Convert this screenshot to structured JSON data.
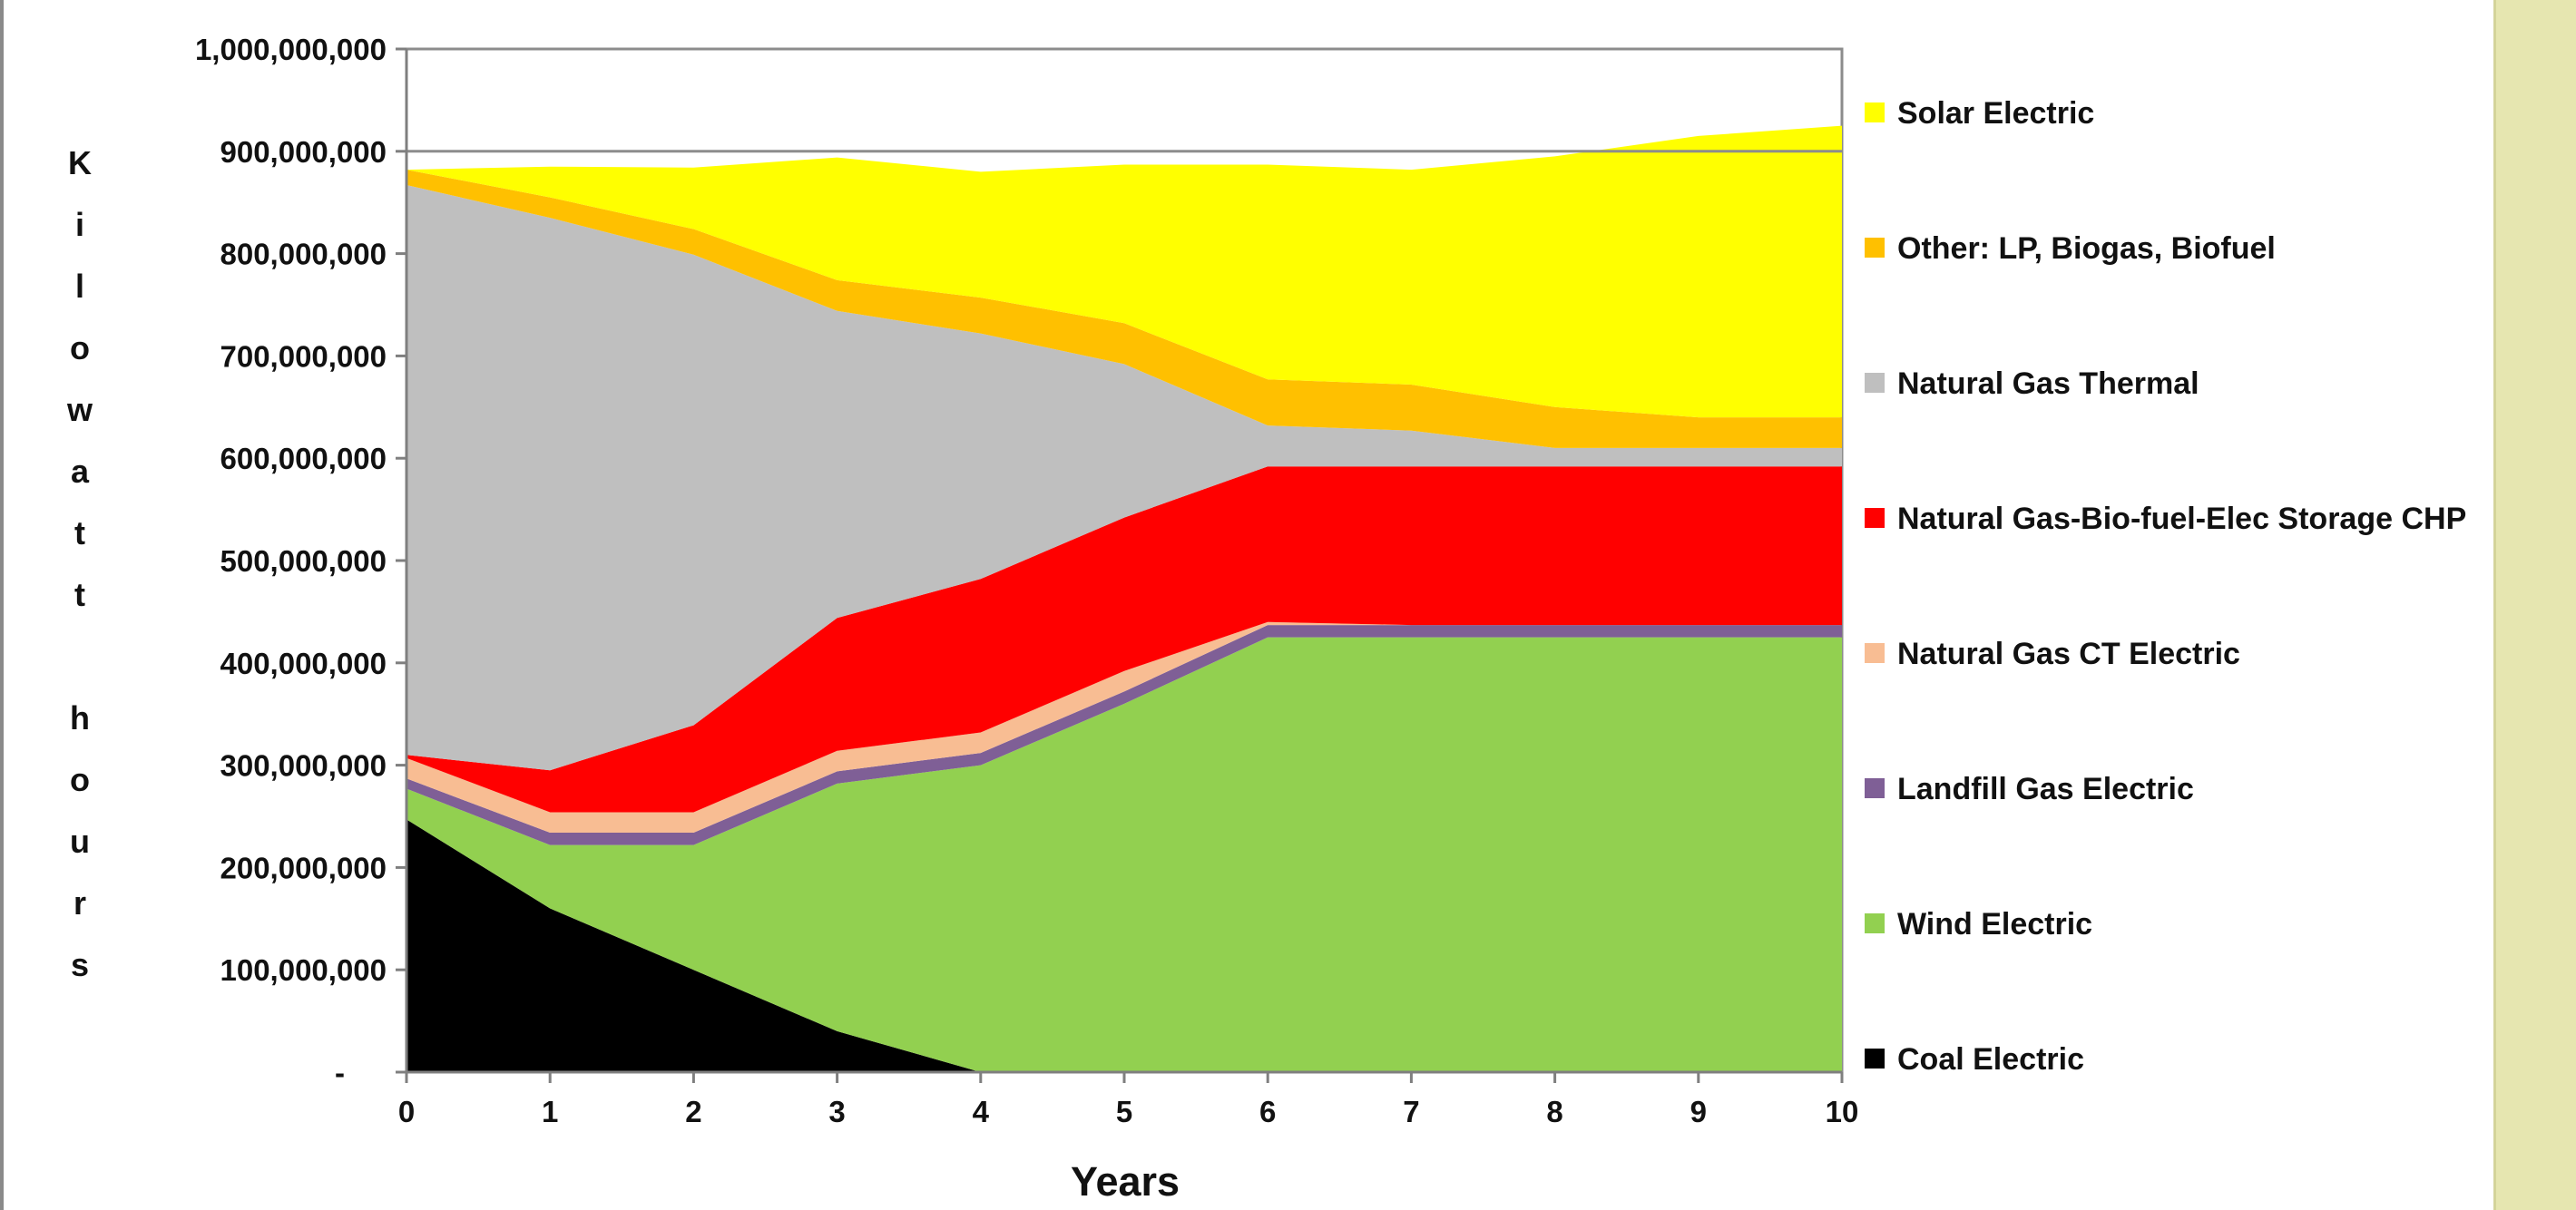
{
  "chart_data": {
    "type": "area",
    "stacked": true,
    "xlabel": "Years",
    "ylabel": "Kilowatt hours",
    "x": [
      0,
      1,
      2,
      3,
      4,
      5,
      6,
      7,
      8,
      9,
      10
    ],
    "ylim": [
      0,
      1000000000
    ],
    "yticks": [
      0,
      100000000,
      200000000,
      300000000,
      400000000,
      500000000,
      600000000,
      700000000,
      800000000,
      900000000,
      1000000000
    ],
    "ytick_labels": [
      "-",
      "100,000,000",
      "200,000,000",
      "300,000,000",
      "400,000,000",
      "500,000,000",
      "600,000,000",
      "700,000,000",
      "800,000,000",
      "900,000,000",
      "1,000,000,000"
    ],
    "xtick_labels": [
      "0",
      "1",
      "2",
      "3",
      "4",
      "5",
      "6",
      "7",
      "8",
      "9",
      "10"
    ],
    "gridlines": [
      900000000
    ],
    "legend_position": "right",
    "series": [
      {
        "name": "Coal Electric",
        "color": "#000000",
        "values": [
          247000000,
          160000000,
          100000000,
          40000000,
          0,
          0,
          0,
          0,
          0,
          0,
          0
        ]
      },
      {
        "name": "Wind Electric",
        "color": "#92d050",
        "values": [
          30000000,
          62000000,
          122000000,
          242000000,
          300000000,
          360000000,
          425000000,
          425000000,
          425000000,
          425000000,
          425000000
        ]
      },
      {
        "name": "Landfill Gas Electric",
        "color": "#7f5f96",
        "values": [
          10000000,
          12000000,
          12000000,
          12000000,
          12000000,
          12000000,
          12000000,
          12000000,
          12000000,
          12000000,
          12000000
        ]
      },
      {
        "name": "Natural Gas CT Electric",
        "color": "#f8bd93",
        "values": [
          20000000,
          20000000,
          20000000,
          20000000,
          20000000,
          20000000,
          3000000,
          0,
          0,
          0,
          0
        ]
      },
      {
        "name": "Natural Gas-Bio-fuel-Elec Storage CHP",
        "color": "#ff0000",
        "values": [
          3000000,
          41000000,
          85000000,
          130000000,
          150000000,
          150000000,
          152000000,
          155000000,
          155000000,
          155000000,
          155000000
        ]
      },
      {
        "name": "Natural Gas Thermal",
        "color": "#bfbfbf",
        "values": [
          557000000,
          540000000,
          460000000,
          300000000,
          240000000,
          150000000,
          40000000,
          35000000,
          18000000,
          18000000,
          18000000
        ]
      },
      {
        "name": "Other: LP, Biogas, Biofuel",
        "color": "#ffc000",
        "values": [
          15000000,
          20000000,
          25000000,
          30000000,
          35000000,
          40000000,
          45000000,
          45000000,
          40000000,
          30000000,
          30000000
        ]
      },
      {
        "name": "Solar Electric",
        "color": "#ffff00",
        "values": [
          0,
          30000000,
          60000000,
          120000000,
          123000000,
          155000000,
          210000000,
          210000000,
          245000000,
          275000000,
          285000000
        ]
      }
    ],
    "legend_order": [
      "Solar Electric",
      "Other: LP, Biogas, Biofuel",
      "Natural Gas Thermal",
      "Natural Gas-Bio-fuel-Elec Storage CHP",
      "Natural Gas CT Electric",
      "Landfill Gas Electric",
      "Wind Electric",
      "Coal Electric"
    ]
  }
}
